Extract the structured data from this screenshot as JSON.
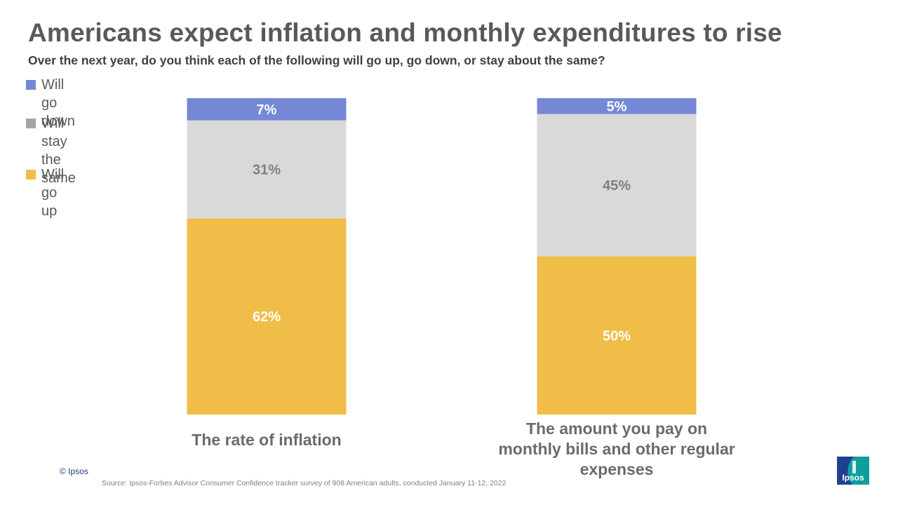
{
  "header": {
    "title": "Americans expect inflation and monthly expenditures to rise",
    "subtitle": "Over the next year, do you think each of the following will go up, go down, or stay about the same?"
  },
  "legend": [
    {
      "label": "Will go down",
      "color": "#7488d6"
    },
    {
      "label": "Will stay\nthe same",
      "color": "#a6a6a6"
    },
    {
      "label": "Will go up",
      "color": "#f0bd48"
    }
  ],
  "chart_data": {
    "type": "bar",
    "stacked": true,
    "orientation": "vertical",
    "ylim": [
      0,
      100
    ],
    "grid": false,
    "legend_position": "top-left",
    "categories": [
      "The rate of inflation",
      "The amount you pay on monthly bills and other regular expenses"
    ],
    "category_label_lines": [
      [
        "The rate of inflation"
      ],
      [
        "The amount you pay on",
        "monthly bills and other regular",
        "expenses"
      ]
    ],
    "series": [
      {
        "name": "Will go up",
        "values": [
          62,
          50
        ],
        "labels": [
          "62%",
          "50%"
        ],
        "color": "#f0bd48",
        "label_color": "#ffffff"
      },
      {
        "name": "Will stay the same",
        "values": [
          31,
          45
        ],
        "labels": [
          "31%",
          "45%"
        ],
        "color": "#d9d9d9",
        "label_color": "#7f7f7f"
      },
      {
        "name": "Will go down",
        "values": [
          7,
          5
        ],
        "labels": [
          "7%",
          "5%"
        ],
        "color": "#7488d6",
        "label_color": "#ffffff"
      }
    ]
  },
  "footer": {
    "copyright": "© Ipsos",
    "source": "Source: Ipsos-Forbes Advisor Consumer Confidence tracker survey of 908 American adults, conducted January 11-12, 2022",
    "logo_text": "Ipsos",
    "logo_color": "#0f9e9e",
    "logo_color_dark": "#1f3f8f"
  }
}
